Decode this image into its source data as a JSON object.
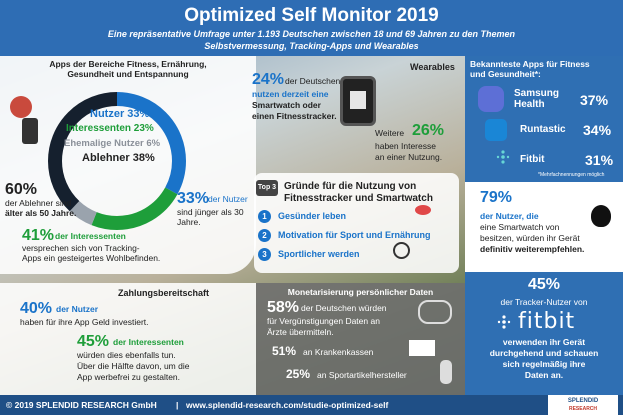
{
  "header": {
    "title": "Optimized Self Monitor 2019",
    "subtitle_line1": "Eine repräsentative Umfrage unter 1.193 Deutschen zwischen 18 und 69 Jahren zu den Themen",
    "subtitle_line2": "Selbstvermessung, Tracking-Apps und Wearables"
  },
  "apps_section": {
    "title_line1": "Apps der Bereiche Fitness, Ernährung,",
    "title_line2": "Gesundheit und Entspannung",
    "donut": {
      "nutzer_label": "Nutzer 33%",
      "interessenten_label": "Interessenten 23%",
      "ehemalige_label": "Ehemalige Nutzer 6%",
      "ablehner_label": "Ablehner 38%",
      "segments": [
        {
          "name": "Nutzer",
          "value": 33,
          "color": "#1a73c9"
        },
        {
          "name": "Interessenten",
          "value": 23,
          "color": "#1e9e3a"
        },
        {
          "name": "Ehemalige Nutzer",
          "value": 6,
          "color": "#9aa3ad"
        },
        {
          "name": "Ablehner",
          "value": 38,
          "color": "#15202e"
        }
      ]
    },
    "ablehner_pct": "60%",
    "ablehner_text1": "der Ablehner sind",
    "ablehner_text2": "älter als 50 Jahre.",
    "nutzer_pct": "33%",
    "nutzer_text1": "der Nutzer",
    "nutzer_text2": "sind jünger als 30",
    "nutzer_text3": "Jahre.",
    "interessenten_pct": "41%",
    "interessenten_text1": "der Interessenten",
    "interessenten_text2": "versprechen sich von Tracking-",
    "interessenten_text3": "Apps ein gesteigertes Wohlbefinden."
  },
  "wearables": {
    "title": "Wearables",
    "pct1": "24%",
    "text1a": "der Deutschen",
    "text1b": "nutzen derzeit eine",
    "text1c": "Smartwatch oder",
    "text1d": "einen Fitnesstracker.",
    "pct2_prefix": "Weitere",
    "pct2": "26%",
    "text2a": "haben Interesse",
    "text2b": "an einer Nutzung."
  },
  "gruende": {
    "badge": "Top 3",
    "title_line1": "Gründe für die Nutzung von",
    "title_line2": "Fitnesstracker und Smartwatch",
    "items": [
      {
        "num": "1",
        "text": "Gesünder leben"
      },
      {
        "num": "2",
        "text": "Motivation für Sport und Ernährung"
      },
      {
        "num": "3",
        "text": "Sportlicher werden"
      }
    ]
  },
  "zahlung": {
    "title": "Zahlungsbereitschaft",
    "pct1": "40%",
    "text1a": "der Nutzer",
    "text1b": "haben für ihre App Geld investiert.",
    "pct2": "45%",
    "text2a": "der Interessenten",
    "text2b": "würden dies ebenfalls tun.",
    "text2c": "Über die Hälfte davon, um die",
    "text2d": "App werbefrei zu gestalten."
  },
  "monetarisierung": {
    "title": "Monetarisierung persönlicher Daten",
    "pct1": "58%",
    "text1a": "der Deutschen würden",
    "text1b": "für Vergünstigungen Daten an",
    "text1c": "Ärzte übermitteln.",
    "pct2": "51%",
    "text2": "an Krankenkassen",
    "pct3": "25%",
    "text3": "an Sportartikelhersteller"
  },
  "bekannteste": {
    "title_line1": "Bekannteste Apps für Fitness",
    "title_line2": "und Gesundheit*:",
    "apps": [
      {
        "name": "Samsung Health",
        "pct": "37%"
      },
      {
        "name": "Runtastic",
        "pct": "34%"
      },
      {
        "name": "Fitbit",
        "pct": "31%"
      }
    ],
    "footnote": "*Mehrfachnennungen möglich"
  },
  "apple": {
    "pct": "79%",
    "text1": "der Nutzer, die",
    "text2": "eine Smartwatch von",
    "text3": "besitzen, würden ihr Gerät",
    "text4": "definitiv weiterempfehlen."
  },
  "fitbit_block": {
    "pct": "45%",
    "text1": "der Tracker-Nutzer von",
    "logo": "fitbit",
    "text2": "verwenden ihr Gerät",
    "text3": "durchgehend und schauen",
    "text4": "sich regelmäßig ihre",
    "text5": "Daten an."
  },
  "footer": {
    "copyright": "© 2019 SPLENDID RESEARCH GmbH",
    "sep": "|",
    "url": "www.splendid-research.com/studie-optimized-self",
    "logo_line1": "SPLENDID",
    "logo_line2": "RESEARCH"
  }
}
